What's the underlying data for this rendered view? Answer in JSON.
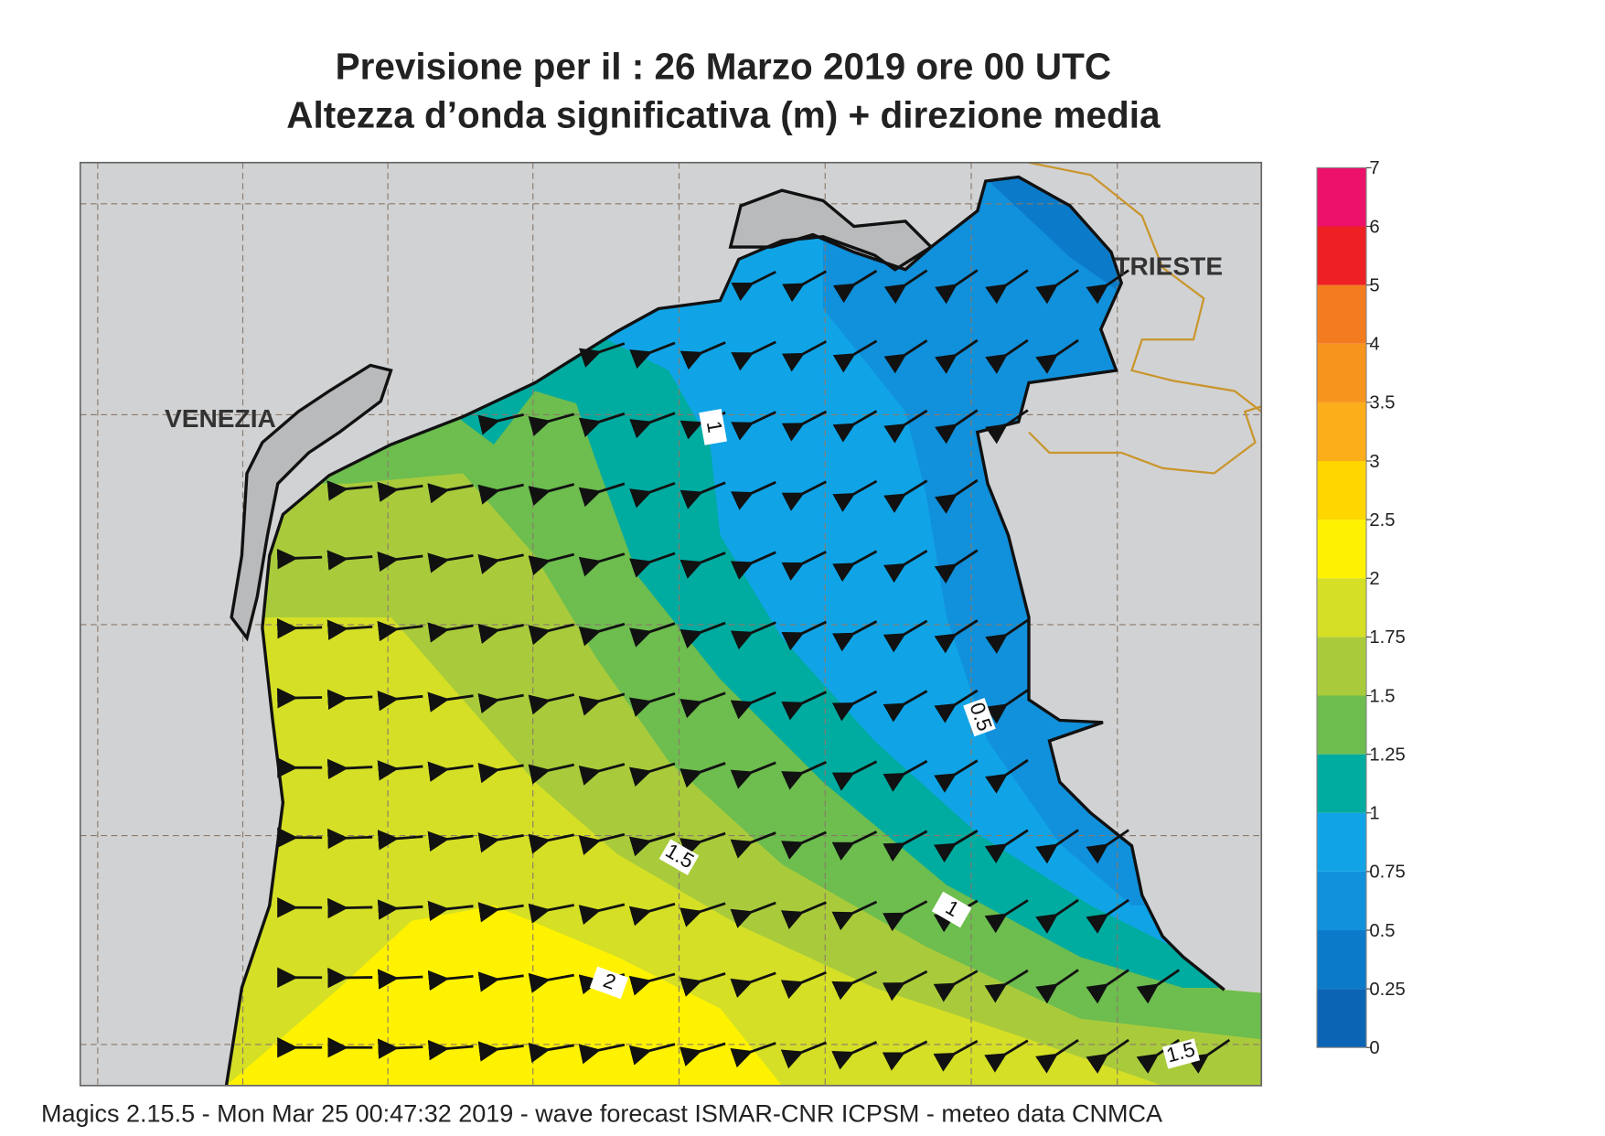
{
  "header": {
    "title_line1": "Previsione per il  :  26   Marzo   2019   ore 00 UTC",
    "title_line2": "Altezza d’onda significativa (m) + direzione media"
  },
  "legend": {
    "ticks": [
      0,
      0.25,
      0.5,
      0.75,
      1,
      1.25,
      1.5,
      1.75,
      2,
      2.5,
      3,
      3.5,
      4,
      5,
      6,
      7
    ],
    "colors": [
      "#0b64b4",
      "#0b7bc9",
      "#1190db",
      "#10a4e6",
      "#00aba0",
      "#6dbd4f",
      "#a9cb3b",
      "#d5df26",
      "#fff200",
      "#ffd600",
      "#fbad1a",
      "#f7941d",
      "#f47c20",
      "#ed2024",
      "#ec1169"
    ]
  },
  "map": {
    "cities": [
      "VENEZIA",
      "TRIESTE"
    ],
    "contour_labels": [
      "1",
      "0.5",
      "1.5",
      "1",
      "2",
      "1.5"
    ]
  },
  "footer": "Magics 2.15.5 - Mon Mar 25 00:47:32 2019 - wave forecast  ISMAR-CNR  ICPSM - meteo data   CNMCA"
}
